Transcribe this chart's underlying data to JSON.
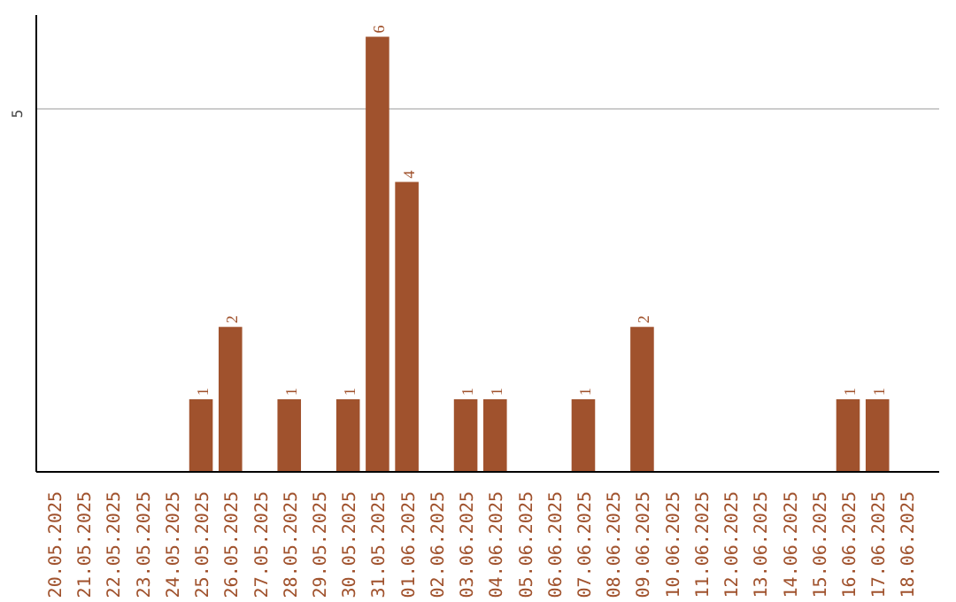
{
  "chart_data": {
    "type": "bar",
    "categories": [
      "20.05.2025",
      "21.05.2025",
      "22.05.2025",
      "23.05.2025",
      "24.05.2025",
      "25.05.2025",
      "26.05.2025",
      "27.05.2025",
      "28.05.2025",
      "29.05.2025",
      "30.05.2025",
      "31.05.2025",
      "01.06.2025",
      "02.06.2025",
      "03.06.2025",
      "04.06.2025",
      "05.06.2025",
      "06.06.2025",
      "07.06.2025",
      "08.06.2025",
      "09.06.2025",
      "10.06.2025",
      "11.06.2025",
      "12.06.2025",
      "13.06.2025",
      "14.06.2025",
      "15.06.2025",
      "16.06.2025",
      "17.06.2025",
      "18.06.2025"
    ],
    "values": [
      0,
      0,
      0,
      0,
      0,
      1,
      2,
      0,
      1,
      0,
      1,
      6,
      4,
      0,
      1,
      1,
      0,
      0,
      1,
      0,
      2,
      0,
      0,
      0,
      0,
      0,
      0,
      1,
      1,
      0
    ],
    "value_labels": [
      null,
      null,
      null,
      null,
      null,
      "1",
      "2",
      null,
      "1",
      null,
      "1",
      "6",
      "4",
      null,
      "1",
      "1",
      null,
      null,
      "1",
      null,
      "2",
      null,
      null,
      null,
      null,
      null,
      null,
      "1",
      "1",
      null
    ],
    "color": "#a0522d",
    "ylim": [
      0,
      6.3
    ],
    "yticks": [
      5
    ],
    "grid": "y"
  }
}
